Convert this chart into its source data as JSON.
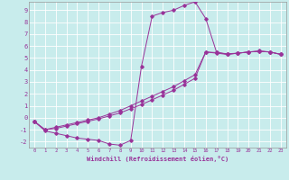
{
  "xlabel": "Windchill (Refroidissement éolien,°C)",
  "background_color": "#c8ecec",
  "grid_color": "#b8d8d8",
  "line_color": "#993399",
  "marker_color": "#993399",
  "xlim": [
    -0.5,
    23.5
  ],
  "ylim": [
    -2.5,
    9.7
  ],
  "xticks": [
    0,
    1,
    2,
    3,
    4,
    5,
    6,
    7,
    8,
    9,
    10,
    11,
    12,
    13,
    14,
    15,
    16,
    17,
    18,
    19,
    20,
    21,
    22,
    23
  ],
  "yticks": [
    -2,
    -1,
    0,
    1,
    2,
    3,
    4,
    5,
    6,
    7,
    8,
    9
  ],
  "series1_x": [
    0,
    1,
    2,
    3,
    4,
    5,
    6,
    7,
    8,
    9,
    10,
    11,
    12,
    13,
    14,
    15,
    16,
    17,
    18,
    19,
    20,
    21,
    22,
    23
  ],
  "series1_y": [
    -0.3,
    -1.1,
    -1.3,
    -1.5,
    -1.7,
    -1.8,
    -1.9,
    -2.2,
    -2.3,
    -1.9,
    4.3,
    8.5,
    8.8,
    9.0,
    9.4,
    9.7,
    8.3,
    5.5,
    5.3,
    5.4,
    5.5,
    5.6,
    5.5,
    5.3
  ],
  "series2_x": [
    0,
    1,
    2,
    3,
    4,
    5,
    6,
    7,
    8,
    9,
    10,
    11,
    12,
    13,
    14,
    15,
    16,
    17,
    18,
    19,
    20,
    21,
    22,
    23
  ],
  "series2_y": [
    -0.3,
    -1.0,
    -0.9,
    -0.7,
    -0.5,
    -0.3,
    -0.1,
    0.15,
    0.4,
    0.75,
    1.1,
    1.5,
    1.9,
    2.3,
    2.8,
    3.3,
    5.5,
    5.45,
    5.35,
    5.4,
    5.5,
    5.55,
    5.5,
    5.3
  ],
  "series3_x": [
    0,
    1,
    2,
    3,
    4,
    5,
    6,
    7,
    8,
    9,
    10,
    11,
    12,
    13,
    14,
    15,
    16,
    17,
    18,
    19,
    20,
    21,
    22,
    23
  ],
  "series3_y": [
    -0.3,
    -1.0,
    -0.8,
    -0.6,
    -0.4,
    -0.2,
    0.0,
    0.3,
    0.6,
    1.0,
    1.4,
    1.8,
    2.2,
    2.6,
    3.1,
    3.6,
    5.5,
    5.4,
    5.3,
    5.4,
    5.5,
    5.55,
    5.5,
    5.3
  ]
}
